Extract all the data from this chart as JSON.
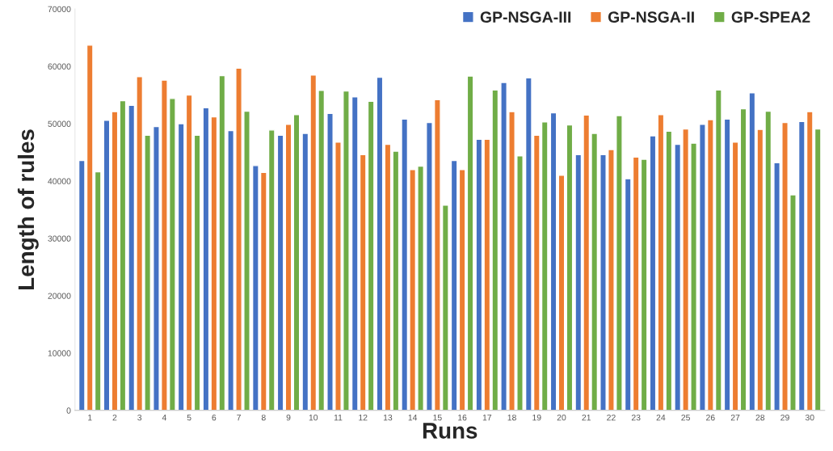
{
  "chart_data": {
    "type": "bar",
    "xlabel": "Runs",
    "ylabel": "Length of rules",
    "categories": [
      "1",
      "2",
      "3",
      "4",
      "5",
      "6",
      "7",
      "8",
      "9",
      "10",
      "11",
      "12",
      "13",
      "14",
      "15",
      "16",
      "17",
      "18",
      "19",
      "20",
      "21",
      "22",
      "23",
      "24",
      "25",
      "26",
      "27",
      "28",
      "29",
      "30"
    ],
    "series": [
      {
        "name": "GP-NSGA-III",
        "color": "#4472c4",
        "values": [
          43600,
          50600,
          53200,
          49500,
          50000,
          52800,
          48800,
          42700,
          48000,
          48300,
          51800,
          54700,
          58100,
          50800,
          50200,
          43600,
          47300,
          57200,
          58000,
          51900,
          44600,
          44600,
          40400,
          47900,
          46400,
          49900,
          50800,
          55400,
          43200,
          50400
        ]
      },
      {
        "name": "GP-NSGA-II",
        "color": "#ed7d31",
        "values": [
          63700,
          52100,
          58200,
          57600,
          55000,
          51200,
          59700,
          41500,
          49900,
          58500,
          46800,
          44600,
          46400,
          42000,
          54200,
          42000,
          47300,
          52100,
          48000,
          41000,
          51500,
          45500,
          44200,
          51600,
          49100,
          50700,
          46800,
          49000,
          50200,
          52100
        ]
      },
      {
        "name": "GP-SPEA2",
        "color": "#70ad47",
        "values": [
          41600,
          54000,
          48000,
          54400,
          48000,
          58400,
          52200,
          48900,
          51600,
          55800,
          55700,
          53900,
          45200,
          42600,
          35800,
          58300,
          55900,
          44400,
          50300,
          49800,
          48300,
          51400,
          43800,
          48700,
          46600,
          55900,
          52600,
          52200,
          37600,
          49100
        ]
      }
    ],
    "ylim": [
      0,
      70000
    ],
    "yticks": [
      0,
      10000,
      20000,
      30000,
      40000,
      50000,
      60000,
      70000
    ],
    "grid": false,
    "legend": "top right"
  }
}
